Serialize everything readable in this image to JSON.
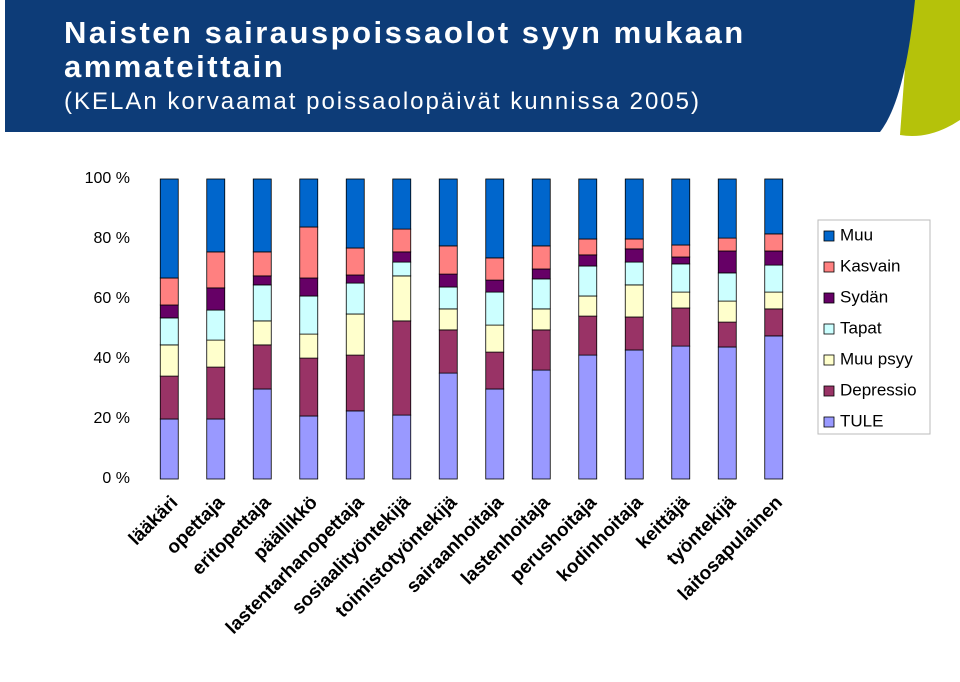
{
  "chart_data": {
    "type": "stacked_bar_100",
    "title": "Naisten sairauspoissaolot syyn mukaan ammateittain",
    "subtitle": "(KELAn korvaamat poissaolopäivät kunnissa 2005)",
    "categories": [
      "lääkäri",
      "opettaja",
      "eritopettaja",
      "päällikkö",
      "lastentarhanopettaja",
      "sosiaalityöntekijä",
      "toimistotyöntekijä",
      "sairaanhoitaja",
      "lastenhoitaja",
      "perushoitaja",
      "kodinhoitaja",
      "keittäjä",
      "työntekijä",
      "laitosapulainen"
    ],
    "series": [
      {
        "name": "TULE",
        "color": "#9999ff",
        "values": [
          20,
          20,
          30,
          21,
          22.7,
          21.3,
          35.3,
          30,
          36.3,
          41.3,
          43,
          44.3,
          44,
          47.7
        ]
      },
      {
        "name": "Depressio",
        "color": "#993366",
        "values": [
          14.3,
          17.3,
          14.7,
          19.3,
          18.6,
          31.4,
          14.4,
          12.3,
          13.4,
          13,
          11,
          12.7,
          8.3,
          9
        ]
      },
      {
        "name": "Muu psyy",
        "color": "#ffffcc",
        "values": [
          10.4,
          9,
          8,
          8,
          13.7,
          15,
          7,
          9,
          7,
          6.7,
          10.7,
          5.3,
          7,
          5.6
        ]
      },
      {
        "name": "Tapat",
        "color": "#ccffff",
        "values": [
          9,
          10,
          12,
          12.7,
          10.3,
          4.6,
          7.3,
          11,
          10,
          10,
          7.6,
          9.4,
          9.4,
          9
        ]
      },
      {
        "name": "Sydän",
        "color": "#660066",
        "values": [
          4.3,
          7.4,
          3,
          6,
          2.7,
          3.4,
          4.3,
          4,
          3.3,
          3.7,
          4.4,
          2.3,
          7.3,
          4.7
        ]
      },
      {
        "name": "Kasvain",
        "color": "#ff8080",
        "values": [
          9,
          12,
          8,
          17,
          9,
          7.6,
          9.4,
          7.4,
          7.7,
          5.3,
          3.3,
          4,
          4.3,
          5.7
        ]
      },
      {
        "name": "Muu",
        "color": "#0066cc",
        "values": [
          33,
          24.3,
          24.3,
          16,
          23,
          16.7,
          22.3,
          26.3,
          22.3,
          20,
          20,
          22,
          19.7,
          18.3
        ]
      }
    ],
    "ylim": [
      0,
      100
    ],
    "yticks": [
      {
        "value": 0,
        "label": "0 %"
      },
      {
        "value": 20,
        "label": "20 %"
      },
      {
        "value": 40,
        "label": "40 %"
      },
      {
        "value": 60,
        "label": "60 %"
      },
      {
        "value": 80,
        "label": "80 %"
      },
      {
        "value": 100,
        "label": "100 %"
      }
    ],
    "legend": "right"
  }
}
